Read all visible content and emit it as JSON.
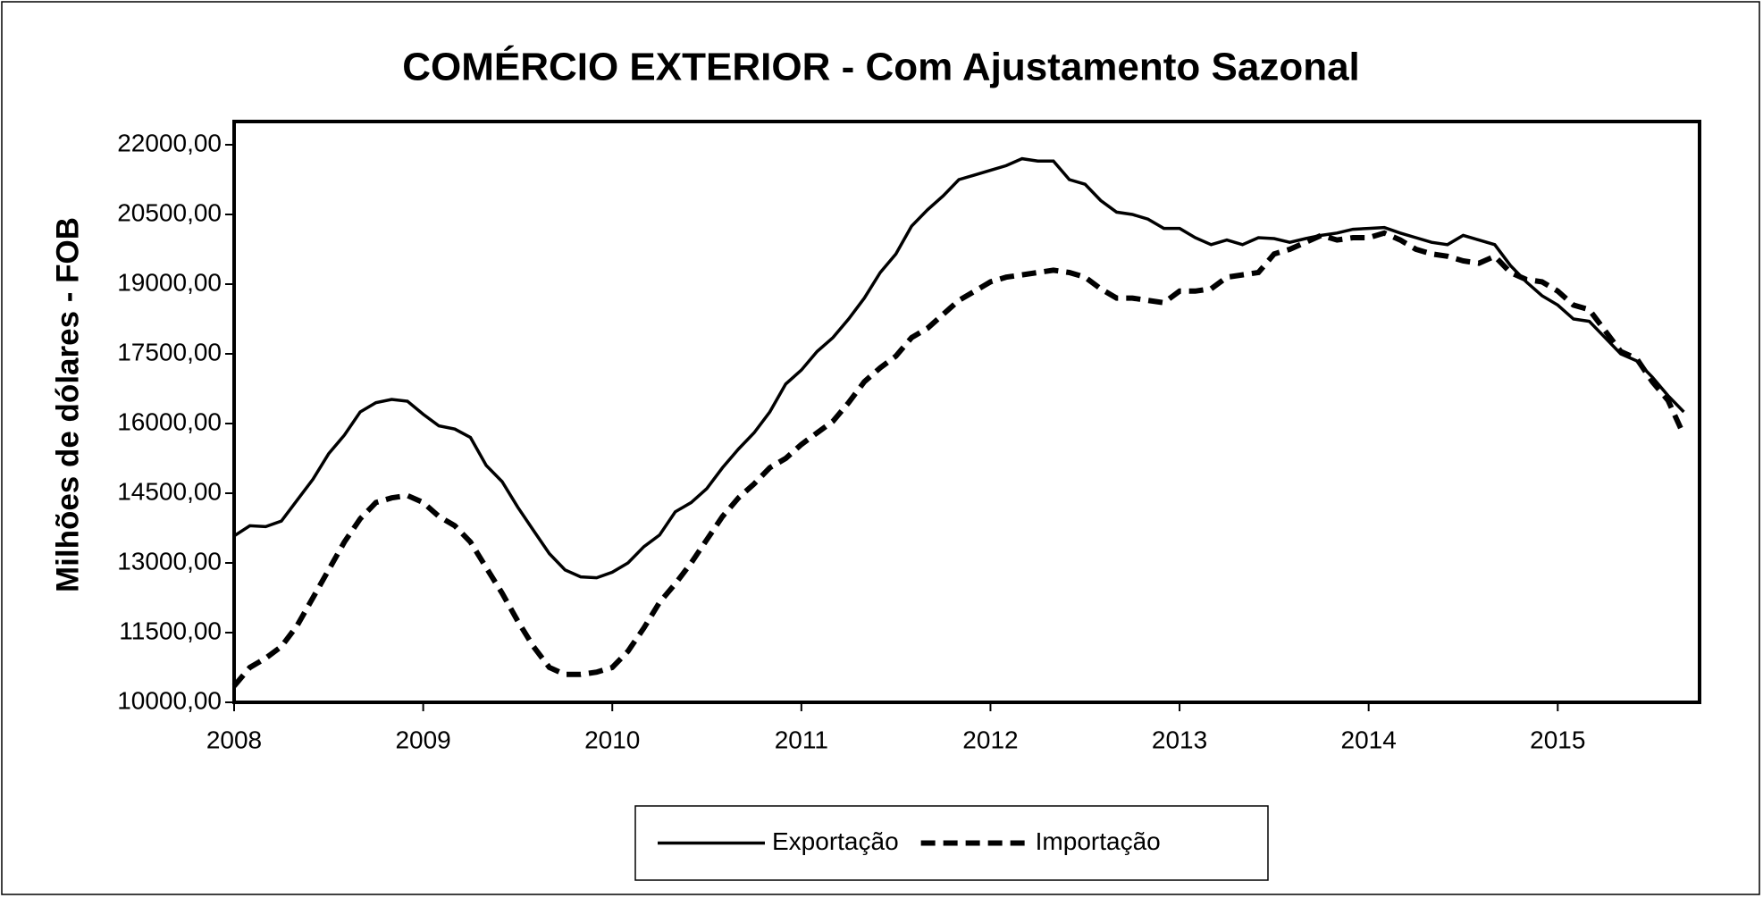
{
  "chart_data": {
    "type": "line",
    "title": "COMÉRCIO EXTERIOR - Com Ajustamento Sazonal",
    "ylabel": "Milhões de dólares - FOB",
    "legend": "bottom",
    "xlim": [
      2008,
      2015.75
    ],
    "xticks": [
      2008,
      2009,
      2010,
      2011,
      2012,
      2013,
      2014,
      2015
    ],
    "ylim": [
      10000,
      22500
    ],
    "yticks": [
      {
        "value": 10000,
        "label": "10000,00"
      },
      {
        "value": 11500,
        "label": "11500,00"
      },
      {
        "value": 13000,
        "label": "13000,00"
      },
      {
        "value": 14500,
        "label": "14500,00"
      },
      {
        "value": 16000,
        "label": "16000,00"
      },
      {
        "value": 17500,
        "label": "17500,00"
      },
      {
        "value": 19000,
        "label": "19000,00"
      },
      {
        "value": 20500,
        "label": "20500,00"
      },
      {
        "value": 22000,
        "label": "22000,00"
      }
    ],
    "x": [
      2008,
      2008.083,
      2008.167,
      2008.25,
      2008.333,
      2008.417,
      2008.5,
      2008.583,
      2008.667,
      2008.75,
      2008.833,
      2008.917,
      2009,
      2009.083,
      2009.167,
      2009.25,
      2009.333,
      2009.417,
      2009.5,
      2009.583,
      2009.667,
      2009.75,
      2009.833,
      2009.917,
      2010,
      2010.083,
      2010.167,
      2010.25,
      2010.333,
      2010.417,
      2010.5,
      2010.583,
      2010.667,
      2010.75,
      2010.833,
      2010.917,
      2011,
      2011.083,
      2011.167,
      2011.25,
      2011.333,
      2011.417,
      2011.5,
      2011.583,
      2011.667,
      2011.75,
      2011.833,
      2011.917,
      2012,
      2012.083,
      2012.167,
      2012.25,
      2012.333,
      2012.417,
      2012.5,
      2012.583,
      2012.667,
      2012.75,
      2012.833,
      2012.917,
      2013,
      2013.083,
      2013.167,
      2013.25,
      2013.333,
      2013.417,
      2013.5,
      2013.583,
      2013.667,
      2013.75,
      2013.833,
      2013.917,
      2014,
      2014.083,
      2014.167,
      2014.25,
      2014.333,
      2014.417,
      2014.5,
      2014.583,
      2014.667,
      2014.75,
      2014.833,
      2014.917,
      2015,
      2015.083,
      2015.167,
      2015.25,
      2015.333,
      2015.417,
      2015.5,
      2015.583,
      2015.667
    ],
    "series": [
      {
        "name": "Exportação",
        "color": "#000000",
        "line_style": "solid",
        "values": [
          13580,
          13800,
          13780,
          13900,
          14350,
          14800,
          15350,
          15750,
          16250,
          16450,
          16520,
          16480,
          16200,
          15950,
          15880,
          15700,
          15100,
          14750,
          14200,
          13700,
          13200,
          12850,
          12700,
          12680,
          12800,
          13000,
          13350,
          13600,
          14100,
          14300,
          14600,
          15050,
          15450,
          15800,
          16250,
          16850,
          17150,
          17550,
          17850,
          18250,
          18700,
          19250,
          19650,
          20250,
          20600,
          20900,
          21250,
          21350,
          21450,
          21550,
          21700,
          21650,
          21650,
          21250,
          21150,
          20800,
          20550,
          20500,
          20400,
          20200,
          20200,
          20000,
          19850,
          19950,
          19850,
          20000,
          19980,
          19900,
          19980,
          20050,
          20100,
          20180,
          20200,
          20220,
          20100,
          20000,
          19900,
          19850,
          20050,
          19950,
          19850,
          19400,
          19050,
          18750,
          18550,
          18250,
          18200,
          17850,
          17500,
          17350,
          17000,
          16600,
          16250
        ]
      },
      {
        "name": "Importação",
        "color": "#000000",
        "line_style": "dashed",
        "values": [
          10350,
          10750,
          10950,
          11200,
          11650,
          12250,
          12850,
          13450,
          13950,
          14300,
          14400,
          14450,
          14300,
          14000,
          13800,
          13450,
          12900,
          12350,
          11750,
          11200,
          10750,
          10600,
          10600,
          10650,
          10750,
          11100,
          11600,
          12150,
          12550,
          13000,
          13500,
          14000,
          14400,
          14700,
          15050,
          15250,
          15550,
          15800,
          16050,
          16450,
          16900,
          17200,
          17450,
          17850,
          18050,
          18350,
          18650,
          18850,
          19050,
          19150,
          19200,
          19250,
          19300,
          19250,
          19150,
          18900,
          18700,
          18700,
          18650,
          18600,
          18850,
          18850,
          18900,
          19150,
          19200,
          19250,
          19650,
          19750,
          19900,
          20050,
          19950,
          20000,
          20000,
          20100,
          19950,
          19750,
          19650,
          19600,
          19500,
          19450,
          19600,
          19250,
          19100,
          19050,
          18850,
          18550,
          18450,
          18000,
          17550,
          17400,
          16900,
          16500,
          15750
        ]
      }
    ]
  }
}
